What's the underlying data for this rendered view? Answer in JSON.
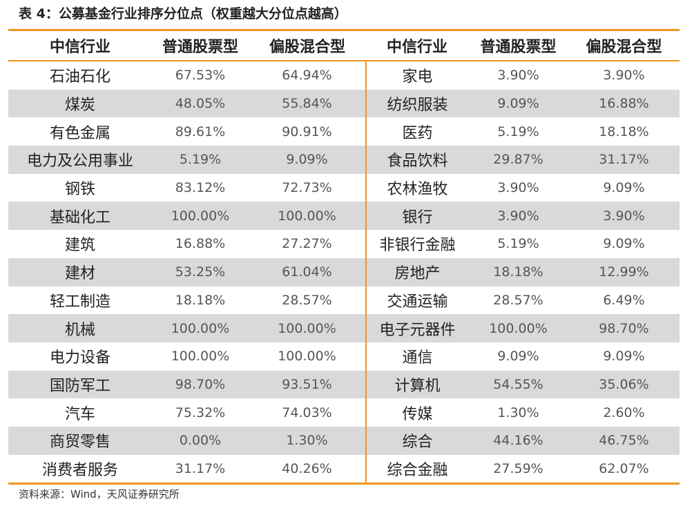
{
  "title": "表 4：公募基金行业排序分位点（权重越大分位点越高）",
  "headers": [
    "中信行业",
    "普通股票型",
    "偏股混合型",
    "中信行业",
    "普通股票型",
    "偏股混合型"
  ],
  "rows": [
    [
      "石油石化",
      "67.53%",
      "64.94%",
      "家电",
      "3.90%",
      "3.90%"
    ],
    [
      "煤炭",
      "48.05%",
      "55.84%",
      "纺织服装",
      "9.09%",
      "16.88%"
    ],
    [
      "有色金属",
      "89.61%",
      "90.91%",
      "医药",
      "5.19%",
      "18.18%"
    ],
    [
      "电力及公用事业",
      "5.19%",
      "9.09%",
      "食品饮料",
      "29.87%",
      "31.17%"
    ],
    [
      "钢铁",
      "83.12%",
      "72.73%",
      "农林渔牧",
      "3.90%",
      "9.09%"
    ],
    [
      "基础化工",
      "100.00%",
      "100.00%",
      "银行",
      "3.90%",
      "3.90%"
    ],
    [
      "建筑",
      "16.88%",
      "27.27%",
      "非银行金融",
      "5.19%",
      "9.09%"
    ],
    [
      "建材",
      "53.25%",
      "61.04%",
      "房地产",
      "18.18%",
      "12.99%"
    ],
    [
      "轻工制造",
      "18.18%",
      "28.57%",
      "交通运输",
      "28.57%",
      "6.49%"
    ],
    [
      "机械",
      "100.00%",
      "100.00%",
      "电子元器件",
      "100.00%",
      "98.70%"
    ],
    [
      "电力设备",
      "100.00%",
      "100.00%",
      "通信",
      "9.09%",
      "9.09%"
    ],
    [
      "国防军工",
      "98.70%",
      "93.51%",
      "计算机",
      "54.55%",
      "35.06%"
    ],
    [
      "汽车",
      "75.32%",
      "74.03%",
      "传媒",
      "1.30%",
      "2.60%"
    ],
    [
      "商贸零售",
      "0.00%",
      "1.30%",
      "综合",
      "44.16%",
      "46.75%"
    ],
    [
      "消费者服务",
      "31.17%",
      "40.26%",
      "综合金融",
      "27.59%",
      "62.07%"
    ]
  ],
  "source": "资料来源：Wind，天风证券研究所",
  "colors": {
    "accent": "#f0941e",
    "stripe": "#d9d9d9"
  }
}
